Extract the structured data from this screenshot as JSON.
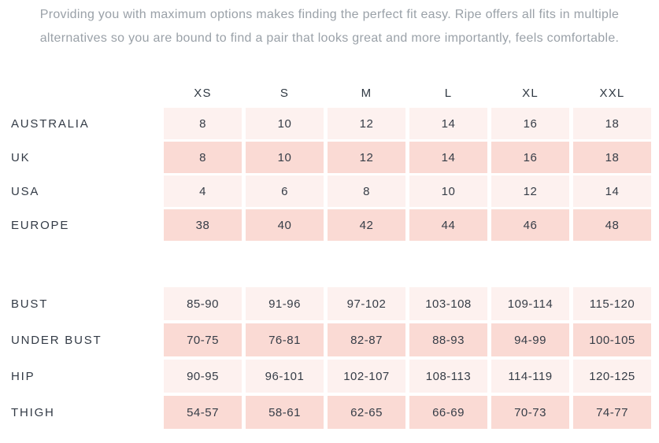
{
  "intro": {
    "lines": [
      "Providing you with maximum options makes finding the perfect fit easy. Ripe offers all fits in multiple",
      "alternatives so you are bound to find a pair that looks great and more importantly, feels comfortable."
    ]
  },
  "size_chart": {
    "columns": [
      "XS",
      "S",
      "M",
      "L",
      "XL",
      "XXL"
    ],
    "conversion_rows": [
      {
        "label": "AUSTRALIA",
        "values": [
          "8",
          "10",
          "12",
          "14",
          "16",
          "18"
        ]
      },
      {
        "label": "UK",
        "values": [
          "8",
          "10",
          "12",
          "14",
          "16",
          "18"
        ]
      },
      {
        "label": "USA",
        "values": [
          "4",
          "6",
          "8",
          "10",
          "12",
          "14"
        ]
      },
      {
        "label": "EUROPE",
        "values": [
          "38",
          "40",
          "42",
          "44",
          "46",
          "48"
        ]
      }
    ],
    "measurement_rows": [
      {
        "label": "BUST",
        "values": [
          "85-90",
          "91-96",
          "97-102",
          "103-108",
          "109-114",
          "115-120"
        ]
      },
      {
        "label": "UNDER BUST",
        "values": [
          "70-75",
          "76-81",
          "82-87",
          "88-93",
          "94-99",
          "100-105"
        ]
      },
      {
        "label": "HIP",
        "values": [
          "90-95",
          "96-101",
          "102-107",
          "108-113",
          "114-119",
          "120-125"
        ]
      },
      {
        "label": "THIGH",
        "values": [
          "54-57",
          "58-61",
          "62-65",
          "66-69",
          "70-73",
          "74-77"
        ]
      }
    ],
    "colors": {
      "row_light": "#fdf1ef",
      "row_dark": "#fadad4",
      "label_text": "#333b46",
      "intro_text": "#9aa1a8"
    }
  }
}
